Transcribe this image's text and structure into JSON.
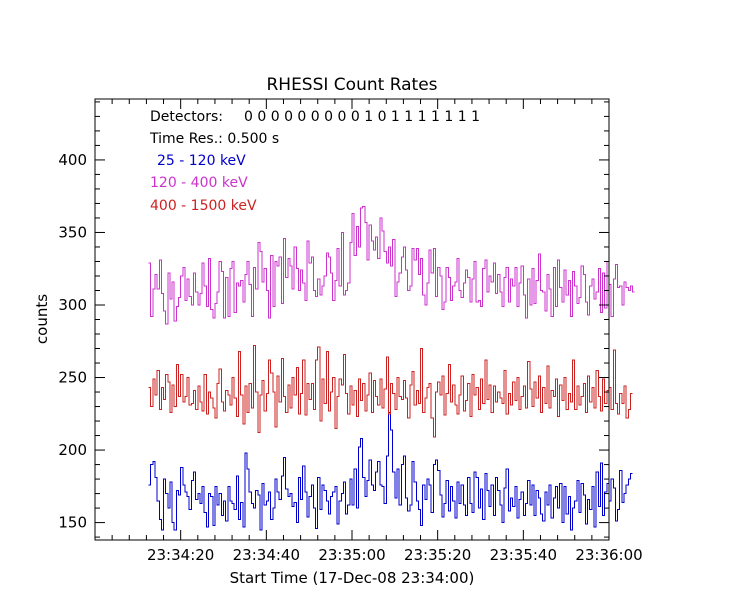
{
  "chart_data": {
    "type": "line",
    "title": "RHESSI Count Rates",
    "xlabel": "Start Time (17-Dec-08 23:34:00)",
    "ylabel": "counts",
    "xlim": [
      "23:34:00",
      "23:36:00"
    ],
    "ylim": [
      138,
      442
    ],
    "x_tick_labels": [
      "23:34:20",
      "23:34:40",
      "23:35:00",
      "23:35:20",
      "23:35:40",
      "23:36:00"
    ],
    "y_tick_labels": [
      "150",
      "200",
      "250",
      "300",
      "350",
      "400"
    ],
    "y_tick_values": [
      150,
      200,
      250,
      300,
      350,
      400
    ],
    "x_range_seconds": [
      0,
      120
    ],
    "x_tick_seconds": [
      20,
      40,
      60,
      80,
      100,
      120
    ],
    "grid": false,
    "annotations": {
      "detectors_label": "Detectors:",
      "detectors_value": "0 0 0 0 0 0 0 0 0 1 0 1 1 1 1 1 1 1",
      "time_res": "Time Res.: 0.500 s"
    },
    "series_defaults": {
      "x_start_seconds": 12.5,
      "step_seconds": 0.5
    },
    "series": [
      {
        "name": "25 - 120 keV",
        "color": "#0000cc",
        "values": [
          176,
          190,
          192,
          181,
          165,
          152,
          145,
          180,
          170,
          160,
          178,
          150,
          145,
          172,
          169,
          188,
          176,
          171,
          168,
          159,
          179,
          185,
          166,
          170,
          163,
          175,
          157,
          147,
          170,
          168,
          148,
          175,
          162,
          170,
          155,
          165,
          151,
          175,
          165,
          163,
          159,
          182,
          152,
          164,
          147,
          198,
          187,
          171,
          163,
          160,
          172,
          169,
          145,
          177,
          162,
          165,
          171,
          152,
          160,
          180,
          171,
          166,
          182,
          195,
          173,
          168,
          170,
          161,
          164,
          150,
          181,
          166,
          189,
          171,
          154,
          168,
          176,
          160,
          146,
          181,
          159,
          176,
          172,
          165,
          156,
          168,
          171,
          175,
          149,
          165,
          170,
          178,
          156,
          162,
          180,
          162,
          187,
          160,
          202,
          208,
          181,
          168,
          179,
          193,
          176,
          172,
          185,
          192,
          176,
          175,
          163,
          196,
          226,
          214,
          185,
          167,
          187,
          162,
          190,
          196,
          167,
          158,
          162,
          192,
          178,
          165,
          159,
          148,
          176,
          166,
          180,
          176,
          157,
          190,
          193,
          186,
          169,
          154,
          163,
          179,
          158,
          175,
          165,
          153,
          178,
          163,
          176,
          162,
          155,
          181,
          163,
          157,
          185,
          181,
          160,
          173,
          152,
          184,
          172,
          161,
          176,
          155,
          181,
          172,
          162,
          150,
          174,
          187,
          158,
          167,
          161,
          175,
          153,
          166,
          171,
          155,
          163,
          179,
          162,
          176,
          155,
          172,
          167,
          156,
          151,
          171,
          162,
          176,
          153,
          167,
          175,
          160,
          177,
          150,
          175,
          156,
          168,
          145,
          160,
          165,
          179,
          157,
          177,
          169,
          149,
          166,
          159,
          175,
          147,
          185,
          161,
          191,
          155,
          171,
          177,
          165,
          180,
          174,
          151,
          159,
          186,
          164,
          170,
          176,
          180,
          184
        ]
      },
      {
        "name": "120 - 400 keV",
        "color": "#cc33cc",
        "values": [
          329,
          292,
          311,
          321,
          311,
          331,
          308,
          296,
          287,
          322,
          304,
          316,
          289,
          299,
          305,
          320,
          326,
          303,
          318,
          306,
          300,
          322,
          309,
          300,
          308,
          329,
          313,
          299,
          332,
          297,
          291,
          301,
          309,
          330,
          323,
          291,
          319,
          292,
          325,
          330,
          295,
          315,
          313,
          317,
          302,
          321,
          330,
          314,
          292,
          326,
          311,
          343,
          337,
          316,
          325,
          310,
          291,
          334,
          299,
          330,
          327,
          333,
          301,
          346,
          319,
          332,
          327,
          311,
          340,
          325,
          310,
          324,
          315,
          303,
          344,
          329,
          333,
          310,
          306,
          318,
          307,
          313,
          320,
          336,
          333,
          322,
          303,
          317,
          339,
          313,
          350,
          307,
          310,
          315,
          343,
          363,
          334,
          354,
          340,
          367,
          368,
          357,
          331,
          355,
          344,
          338,
          347,
          332,
          360,
          351,
          337,
          329,
          340,
          327,
          345,
          306,
          316,
          322,
          333,
          340,
          324,
          310,
          313,
          339,
          331,
          339,
          321,
          332,
          307,
          300,
          315,
          338,
          322,
          339,
          306,
          326,
          320,
          297,
          302,
          326,
          319,
          303,
          313,
          316,
          332,
          310,
          305,
          315,
          324,
          319,
          302,
          318,
          330,
          302,
          303,
          299,
          325,
          331,
          309,
          320,
          316,
          329,
          308,
          321,
          309,
          299,
          319,
          326,
          302,
          318,
          313,
          326,
          299,
          315,
          327,
          307,
          291,
          318,
          300,
          325,
          301,
          317,
          335,
          310,
          309,
          296,
          321,
          311,
          292,
          326,
          299,
          331,
          312,
          302,
          324,
          307,
          317,
          292,
          323,
          313,
          301,
          305,
          327,
          321,
          302,
          293,
          313,
          318,
          304,
          309,
          325,
          295,
          322,
          298,
          330,
          314,
          292,
          318,
          328,
          312,
          313,
          300,
          316,
          312,
          310,
          313,
          309
        ]
      },
      {
        "name": "400 - 1500 keV",
        "color": "#cc2222",
        "values": [
          243,
          230,
          249,
          238,
          255,
          228,
          243,
          235,
          252,
          247,
          226,
          245,
          230,
          259,
          237,
          252,
          233,
          237,
          250,
          231,
          232,
          241,
          228,
          244,
          233,
          227,
          252,
          225,
          240,
          236,
          229,
          222,
          246,
          256,
          233,
          227,
          241,
          238,
          231,
          250,
          236,
          223,
          268,
          238,
          218,
          244,
          226,
          246,
          229,
          272,
          240,
          212,
          238,
          248,
          227,
          239,
          262,
          253,
          240,
          216,
          251,
          233,
          263,
          237,
          226,
          245,
          229,
          250,
          238,
          257,
          225,
          239,
          262,
          224,
          246,
          235,
          246,
          228,
          262,
          271,
          220,
          249,
          232,
          268,
          227,
          240,
          250,
          215,
          237,
          249,
          245,
          266,
          239,
          225,
          244,
          231,
          241,
          223,
          249,
          234,
          246,
          227,
          238,
          253,
          226,
          248,
          237,
          231,
          249,
          229,
          242,
          264,
          225,
          246,
          239,
          228,
          250,
          237,
          235,
          248,
          236,
          222,
          245,
          254,
          231,
          241,
          232,
          270,
          226,
          236,
          243,
          246,
          222,
          209,
          240,
          247,
          238,
          251,
          224,
          239,
          259,
          233,
          245,
          231,
          225,
          238,
          251,
          227,
          234,
          246,
          223,
          252,
          238,
          243,
          228,
          249,
          232,
          262,
          235,
          245,
          226,
          244,
          233,
          240,
          236,
          232,
          255,
          225,
          239,
          231,
          247,
          234,
          250,
          228,
          237,
          244,
          229,
          261,
          242,
          230,
          247,
          236,
          251,
          226,
          243,
          232,
          258,
          229,
          241,
          237,
          249,
          223,
          245,
          234,
          250,
          228,
          239,
          233,
          262,
          228,
          244,
          231,
          237,
          246,
          226,
          251,
          233,
          243,
          229,
          255,
          237,
          227,
          249,
          232,
          241,
          243,
          228,
          269,
          232,
          225,
          239,
          232,
          244,
          222,
          228,
          239
        ]
      }
    ]
  }
}
